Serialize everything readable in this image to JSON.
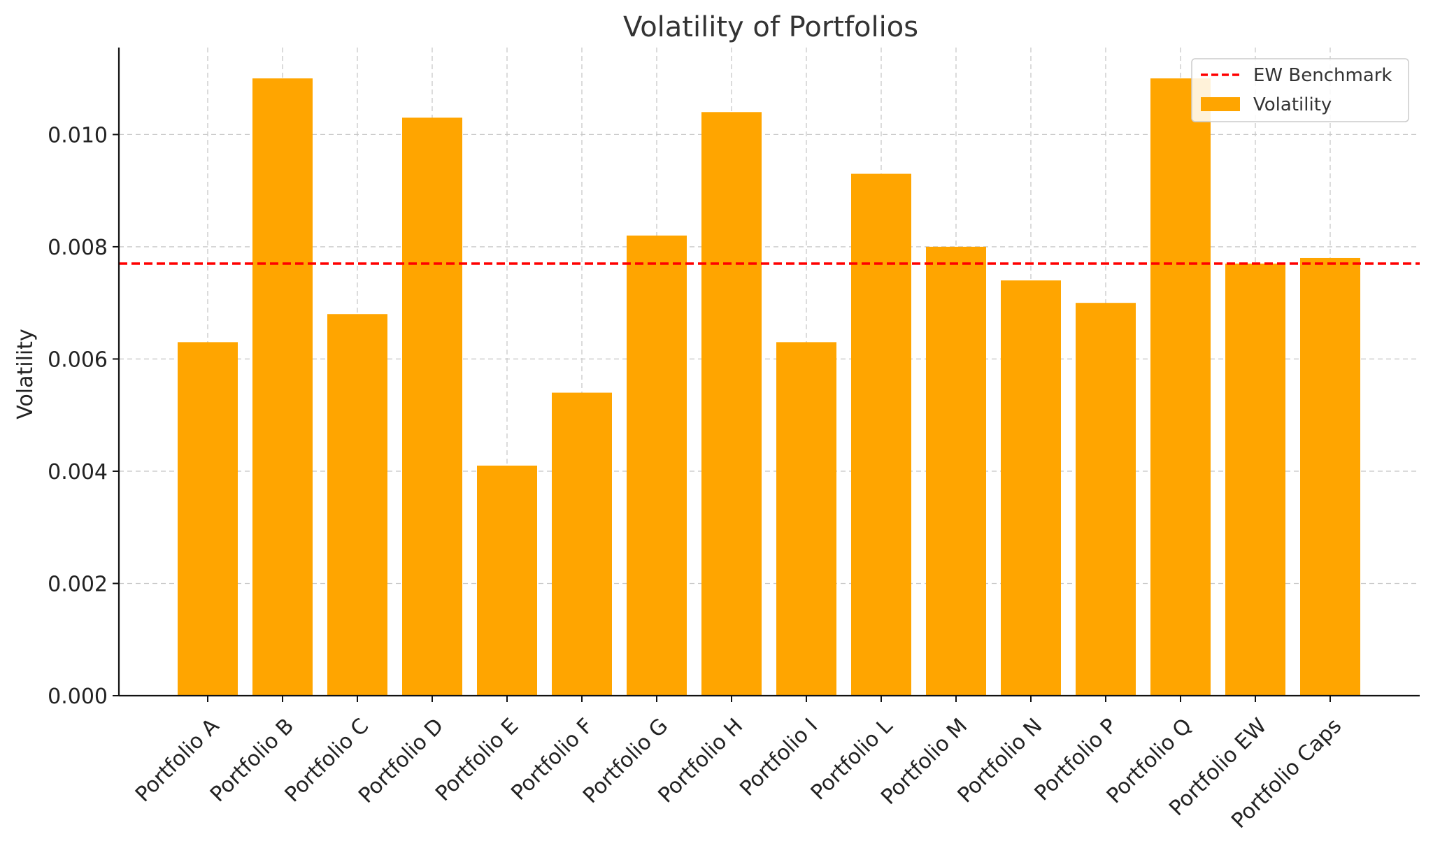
{
  "chart_data": {
    "type": "bar",
    "title": "Volatility of Portfolios",
    "xlabel": "",
    "ylabel": "Volatility",
    "categories": [
      "Portfolio A",
      "Portfolio B",
      "Portfolio C",
      "Portfolio D",
      "Portfolio E",
      "Portfolio F",
      "Portfolio G",
      "Portfolio H",
      "Portfolio I",
      "Portfolio L",
      "Portfolio M",
      "Portfolio N",
      "Portfolio P",
      "Portfolio Q",
      "Portfolio EW",
      "Portfolio Caps"
    ],
    "series": [
      {
        "name": "Volatility",
        "color": "#FFA500",
        "values": [
          0.0063,
          0.011,
          0.0068,
          0.0103,
          0.0041,
          0.0054,
          0.0082,
          0.0104,
          0.0063,
          0.0093,
          0.008,
          0.0074,
          0.007,
          0.011,
          0.0077,
          0.0078
        ]
      }
    ],
    "reference_lines": [
      {
        "name": "EW Benchmark",
        "value": 0.0077,
        "color": "#FF0000",
        "style": "dashed"
      }
    ],
    "ylim": [
      0,
      0.01155
    ],
    "yticks": [
      "0.000",
      "0.002",
      "0.004",
      "0.006",
      "0.008",
      "0.010"
    ],
    "ytick_values": [
      0,
      0.002,
      0.004,
      0.006,
      0.008,
      0.01
    ],
    "grid": true,
    "legend_position": "top-right"
  }
}
